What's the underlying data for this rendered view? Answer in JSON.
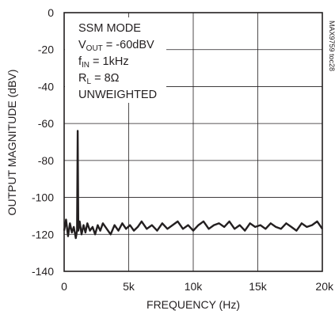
{
  "chart_data": {
    "type": "line",
    "title": "",
    "xlabel": "FREQUENCY (Hz)",
    "ylabel": "OUTPUT MAGNITUDE (dBV)",
    "xlim": [
      0,
      20000
    ],
    "ylim": [
      -140,
      0
    ],
    "x_ticks": [
      0,
      5000,
      10000,
      15000,
      20000
    ],
    "x_tick_labels": [
      "0",
      "5k",
      "10k",
      "15k",
      "20k"
    ],
    "y_ticks": [
      0,
      -20,
      -40,
      -60,
      -80,
      -100,
      -120,
      -140
    ],
    "y_tick_labels": [
      "0",
      "-20",
      "-40",
      "-60",
      "-80",
      "-100",
      "-120",
      "-140"
    ],
    "grid": true,
    "annotations": [
      "SSM MODE",
      "V",
      "OUT",
      " = -60dBV",
      "f",
      "IN",
      " = 1kHz",
      "R",
      "L",
      " = 8Ω",
      "UNWEIGHTED"
    ],
    "figure_id": "MAX9759 toc28",
    "series": [
      {
        "x": [
          0,
          150,
          300,
          450,
          600,
          750,
          900,
          1000,
          1050,
          1100,
          1200,
          1350,
          1500,
          1650,
          1800,
          2000,
          2200,
          2400,
          2600,
          2800,
          3000,
          3300,
          3600,
          3900,
          4200,
          4500,
          4800,
          5100,
          5400,
          5700,
          6000,
          6400,
          6800,
          7200,
          7600,
          8000,
          8400,
          8800,
          9200,
          9600,
          10000,
          10400,
          10800,
          11200,
          11600,
          12000,
          12400,
          12800,
          13200,
          13600,
          14000,
          14400,
          14800,
          15200,
          15600,
          16000,
          16400,
          16800,
          17200,
          17600,
          18000,
          18400,
          18800,
          19200,
          19600,
          20000
        ],
        "y": [
          -118,
          -112,
          -121,
          -114,
          -119,
          -116,
          -122,
          -118,
          -64,
          -118,
          -113,
          -120,
          -115,
          -119,
          -114,
          -118,
          -116,
          -120,
          -115,
          -118,
          -114,
          -117,
          -120,
          -115,
          -118,
          -114,
          -117,
          -115,
          -118,
          -116,
          -113,
          -117,
          -115,
          -118,
          -114,
          -117,
          -115,
          -113,
          -117,
          -115,
          -118,
          -115,
          -113,
          -117,
          -115,
          -114,
          -116,
          -113,
          -117,
          -115,
          -118,
          -114,
          -116,
          -115,
          -117,
          -114,
          -116,
          -117,
          -114,
          -116,
          -118,
          -114,
          -116,
          -115,
          -113,
          -117
        ]
      }
    ]
  }
}
